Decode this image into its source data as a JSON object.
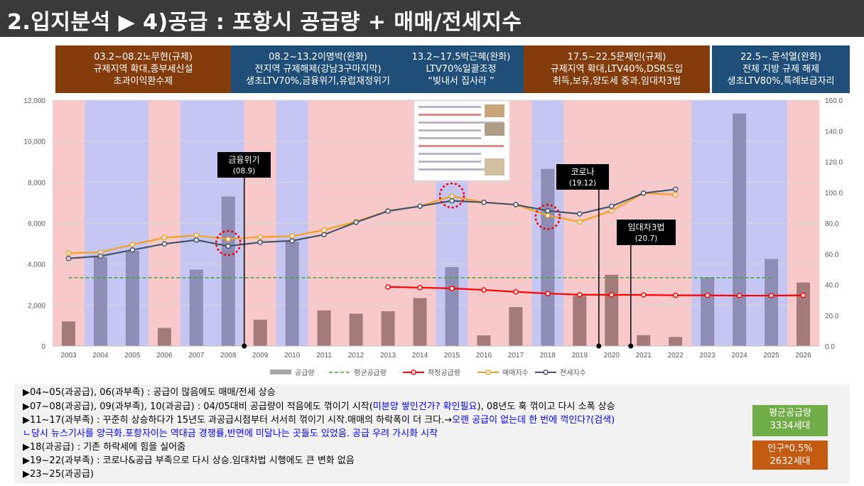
{
  "title": "2.입지분석 ▶ 4)공급 : 포항시 공급량 + 매매/전세지수",
  "eras": [
    {
      "line1": "03.2~08.2노무현(규제)",
      "line2": "규제지역 확대,종부세신설",
      "line3": "초과이익환수제",
      "color": "#843c0c"
    },
    {
      "line1": "08.2~13.2이명박(완화)",
      "line2": "전지역 규제해제(강남3구마지막)",
      "line3": "생초LTV70%,금융위기,유럽재정위기",
      "color": "#1f4e79"
    },
    {
      "line1": "13.2~17.5박근혜(완화)",
      "line2": "LTV70%일괄조정",
      "line3": "“빚내서 집사라 ”",
      "color": "#1f4e79"
    },
    {
      "line1": "17.5~22.5문재인(규제)",
      "line2": "규제지역 확대,LTV40%,DSR도입",
      "line3": "취득,보유,양도세 중과.임대차3법",
      "color": "#843c0c"
    },
    {
      "line1": "22.5~.윤석열(완화)",
      "line2": "전체 지방 규제 해제",
      "line3": "생초LTV80%,특례보금자리",
      "color": "#1f4e79"
    }
  ],
  "chart_data": {
    "type": "bar+line",
    "categories": [
      "2003",
      "2004",
      "2005",
      "2006",
      "2007",
      "2008",
      "2009",
      "2010",
      "2011",
      "2012",
      "2013",
      "2014",
      "2015",
      "2016",
      "2017",
      "2018",
      "2019",
      "2020",
      "2021",
      "2022",
      "2023",
      "2024",
      "2025",
      "2026"
    ],
    "y_left_ticks": [
      "0",
      "2,000",
      "4,000",
      "6,000",
      "8,000",
      "10,000",
      "12,000"
    ],
    "y_right_ticks": [
      "0.0",
      "20.0",
      "40.0",
      "60.0",
      "80.0",
      "100.0",
      "120.0",
      "140.0",
      "160.0"
    ],
    "ylim_left": [
      0,
      12000
    ],
    "ylim_right": [
      0,
      160
    ],
    "background_bands": [
      "pink",
      "blue",
      "blue",
      "pink",
      "blue",
      "blue",
      "pink",
      "blue",
      "pink",
      "pink",
      "pink",
      "pink",
      "blue",
      "pink",
      "pink",
      "blue",
      "pink",
      "pink",
      "pink",
      "pink",
      "blue",
      "blue",
      "blue",
      "pink"
    ],
    "series": [
      {
        "name": "공급량",
        "axis": "left",
        "kind": "bar",
        "values": [
          1200,
          4350,
          4650,
          880,
          3730,
          7300,
          1280,
          5100,
          1740,
          1580,
          1700,
          2340,
          3850,
          520,
          1900,
          8650,
          2450,
          3480,
          530,
          440,
          3350,
          11350,
          4250,
          3100
        ]
      },
      {
        "name": "평균공급량",
        "axis": "left",
        "kind": "dashed",
        "values": [
          3334,
          3334,
          3334,
          3334,
          3334,
          3334,
          3334,
          3334,
          3334,
          3334,
          3334,
          3334,
          3334,
          3334,
          3334,
          3334,
          3334,
          3334,
          3334,
          3334,
          3334,
          3334,
          3334,
          null
        ]
      },
      {
        "name": "적정공급량",
        "axis": "right",
        "kind": "line",
        "values": [
          null,
          null,
          null,
          null,
          null,
          null,
          null,
          null,
          null,
          null,
          38.5,
          38.0,
          37.5,
          36.5,
          35.3,
          34.2,
          33.4,
          33.3,
          33.3,
          33.0,
          33.0,
          32.8,
          32.8,
          33.0
        ]
      },
      {
        "name": "매매지수",
        "axis": "right",
        "kind": "line",
        "values": [
          60.5,
          61.0,
          66.0,
          70.5,
          72.0,
          69.5,
          71.0,
          71.5,
          75.5,
          81.0,
          88.0,
          91.0,
          97.5,
          93.5,
          92.0,
          85.0,
          80.8,
          88.0,
          99.5,
          98.5,
          null,
          null,
          null,
          null
        ]
      },
      {
        "name": "전세지수",
        "axis": "right",
        "kind": "line",
        "values": [
          57.0,
          58.5,
          62.5,
          66.5,
          69.0,
          65.0,
          67.5,
          68.5,
          72.5,
          80.5,
          87.8,
          91.0,
          94.5,
          93.5,
          92.0,
          88.0,
          86.0,
          91.0,
          99.5,
          102.0,
          null,
          null,
          null,
          null
        ]
      }
    ],
    "annotations": [
      {
        "label": "금융위기",
        "sub": "(08.9)"
      },
      {
        "label": "코로나",
        "sub": "(19.12)"
      },
      {
        "label": "임대차3법",
        "sub": "(20.7)"
      }
    ]
  },
  "notes": [
    {
      "text": "▶04~05(과공급), 06(과부족) : 공급이 많음에도 매매/전세 상승"
    },
    {
      "pre": "▶07~08(과공급), 09(과부족), 10(과공급) : 04/05대비 공급량이 적음에도 꺾이기 시작(",
      "blue": "미분양 쌓인건가? 확인필요",
      "post": "), 08년도 훅 꺾이고 다시 소폭 상승"
    },
    {
      "pre": "▶11~17(과부족) : 꾸준히 상승하다가 15년도 과공급시점부터 서서히 꺾이기 시작.매매의 하락폭이 더 크다.→",
      "blue": "오랜 공급이 없는데 한 번에 꺽인다?(검색)",
      "post": ""
    },
    {
      "blue": "ㄴ당시 뉴스기사를 양극화.포항자이는 역대금 경쟁률,반면에 미달나는 곳들도 있었음. 공급 우려 가시화 시작"
    },
    {
      "text": "▶18(과공급) : 기존 하락세에 힘을 실어줌"
    },
    {
      "text": "▶19~22(과부족) : 코로나&공급 부족으로 다시 상승.임대차법 시행에도 큰 변화 없음"
    },
    {
      "text": "▶23~25(과공급)"
    }
  ],
  "summary": {
    "avg_label": "평균공급량",
    "avg_value": "3334세대",
    "need_label": "인구*0.5%",
    "need_value": "2632세대"
  },
  "colors": {
    "bar": "#8d8db5",
    "bar_brown": "#a47b7b",
    "sale": "#f4a21e",
    "jeonse": "#44546a",
    "proper": "#ff0000",
    "avg": "#4aa13e",
    "pink_band": "#f8c9cb",
    "blue_band": "#c6c6f2"
  }
}
